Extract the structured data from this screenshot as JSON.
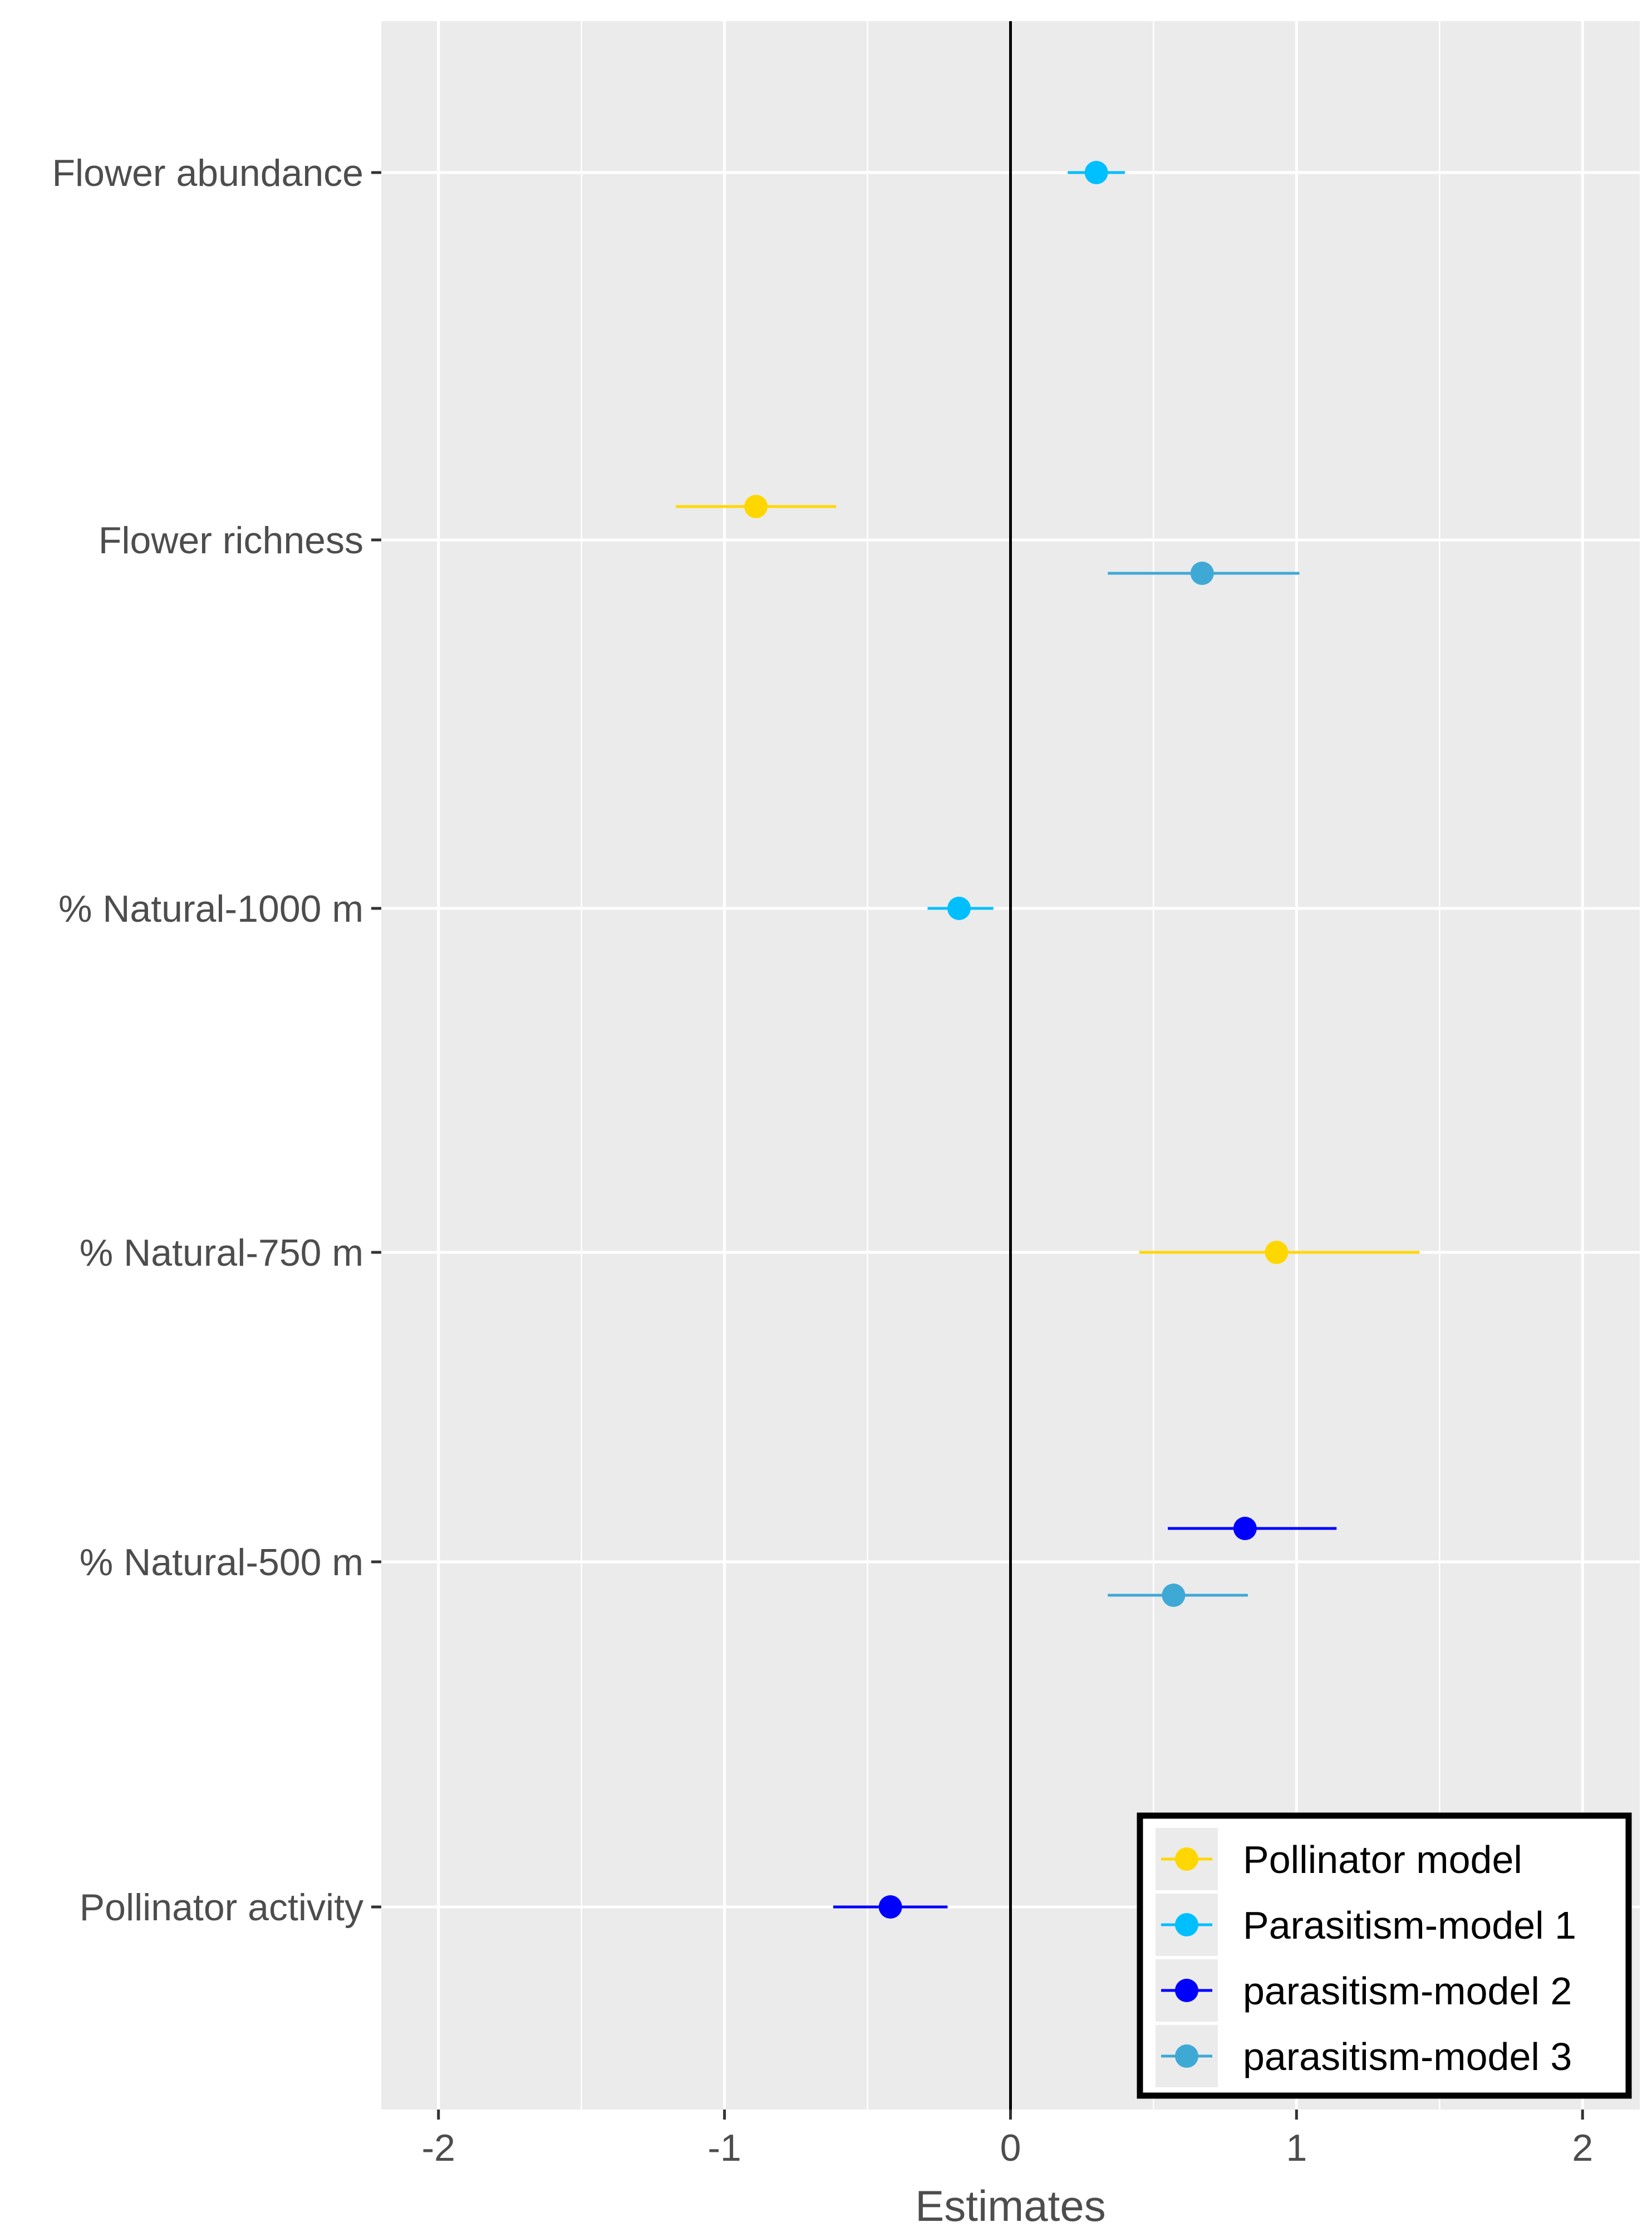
{
  "chart_data": {
    "type": "forest",
    "title": "",
    "xlabel": "Estimates",
    "ylabel": "",
    "xlim": [
      -2.2,
      2.2
    ],
    "x_ticks": [
      -2,
      -1,
      0,
      1,
      2
    ],
    "x_tick_labels": [
      "-2",
      "-1",
      "0",
      "1",
      "2"
    ],
    "categories": [
      "Flower abundance",
      "Flower richness",
      "% Natural-1000 m",
      "% Natural-750 m",
      "% Natural-500 m",
      "Pollinator activity"
    ],
    "series": [
      {
        "name": "Pollinator model",
        "color": "#FFD700",
        "points": [
          {
            "category": "Flower richness",
            "estimate": -0.89,
            "lower": -1.17,
            "upper": -0.61
          },
          {
            "category": "% Natural-750 m",
            "estimate": 0.93,
            "lower": 0.45,
            "upper": 1.43
          }
        ]
      },
      {
        "name": "Parasitism-model 1",
        "color": "#00BFFF",
        "points": [
          {
            "category": "Flower abundance",
            "estimate": 0.3,
            "lower": 0.2,
            "upper": 0.4
          },
          {
            "category": "% Natural-1000 m",
            "estimate": -0.18,
            "lower": -0.29,
            "upper": -0.06
          }
        ]
      },
      {
        "name": "parasitism-model 2",
        "color": "#0000FF",
        "points": [
          {
            "category": "% Natural-500 m",
            "estimate": 0.82,
            "lower": 0.55,
            "upper": 1.14
          },
          {
            "category": "Pollinator activity",
            "estimate": -0.42,
            "lower": -0.62,
            "upper": -0.22
          }
        ]
      },
      {
        "name": "parasitism-model 3",
        "color": "#3FA9D6",
        "points": [
          {
            "category": "Flower richness",
            "estimate": 0.67,
            "lower": 0.34,
            "upper": 1.01
          },
          {
            "category": "% Natural-500 m",
            "estimate": 0.57,
            "lower": 0.34,
            "upper": 0.83
          }
        ]
      }
    ],
    "legend_position": "bottom-right",
    "reference_line_x": 0,
    "grid": true
  }
}
